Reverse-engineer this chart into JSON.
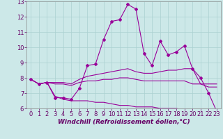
{
  "xlabel": "Windchill (Refroidissement éolien,°C)",
  "ylabel": "",
  "background_color": "#cce8e8",
  "line_color": "#990099",
  "x": [
    0,
    1,
    2,
    3,
    4,
    5,
    6,
    7,
    8,
    9,
    10,
    11,
    12,
    13,
    14,
    15,
    16,
    17,
    18,
    19,
    20,
    21,
    22,
    23
  ],
  "y_top": [
    7.9,
    7.6,
    7.7,
    6.7,
    6.7,
    6.6,
    7.3,
    8.8,
    8.9,
    10.5,
    11.7,
    11.8,
    12.8,
    12.5,
    9.6,
    8.8,
    10.4,
    9.5,
    9.7,
    10.1,
    8.6,
    8.0,
    7.0,
    5.8
  ],
  "y_mid_upper": [
    7.9,
    7.6,
    7.7,
    7.7,
    7.7,
    7.6,
    7.9,
    8.1,
    8.2,
    8.3,
    8.4,
    8.5,
    8.6,
    8.4,
    8.3,
    8.3,
    8.4,
    8.5,
    8.5,
    8.6,
    8.6,
    7.6,
    7.6,
    7.6
  ],
  "y_mid_lower": [
    7.9,
    7.6,
    7.7,
    7.6,
    7.6,
    7.5,
    7.7,
    7.8,
    7.8,
    7.9,
    7.9,
    8.0,
    8.0,
    7.9,
    7.8,
    7.8,
    7.8,
    7.8,
    7.8,
    7.8,
    7.6,
    7.6,
    7.4,
    7.4
  ],
  "y_bottom": [
    7.9,
    7.6,
    7.7,
    6.8,
    6.6,
    6.5,
    6.5,
    6.5,
    6.4,
    6.4,
    6.3,
    6.2,
    6.2,
    6.1,
    6.1,
    6.1,
    6.0,
    6.0,
    6.0,
    5.9,
    5.9,
    5.9,
    5.9,
    5.8
  ],
  "ylim": [
    6.0,
    13.0
  ],
  "xlim_min": -0.5,
  "xlim_max": 23.5,
  "yticks": [
    6,
    7,
    8,
    9,
    10,
    11,
    12,
    13
  ],
  "xticks": [
    0,
    1,
    2,
    3,
    4,
    5,
    6,
    7,
    8,
    9,
    10,
    11,
    12,
    13,
    14,
    15,
    16,
    17,
    18,
    19,
    20,
    21,
    22,
    23
  ],
  "grid_color": "#aad0d0",
  "tick_fontsize": 6,
  "xlabel_fontsize": 6.5,
  "xlabel_color": "#660066",
  "line_width": 0.8,
  "marker_size": 2.0
}
